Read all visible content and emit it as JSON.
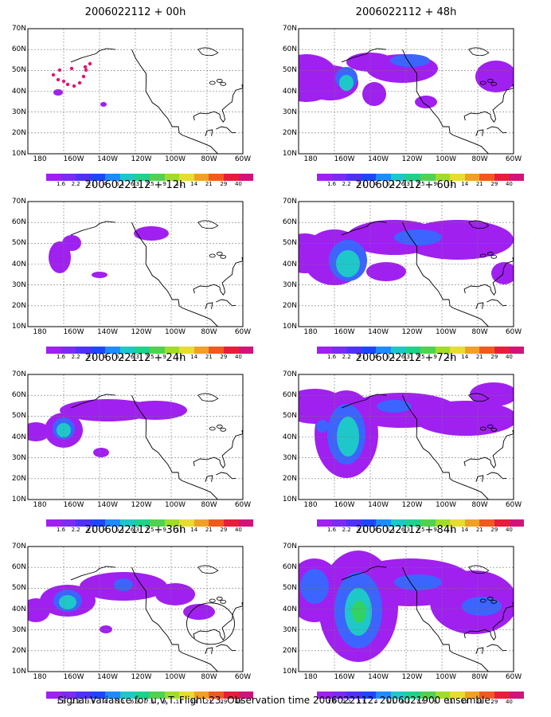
{
  "footer": "Signal Variance for u,v,T. Flight 23. Observation time 2006022112. 2006021900 ensemble.",
  "lat_labels": [
    "70N",
    "60N",
    "50N",
    "40N",
    "30N",
    "20N",
    "10N"
  ],
  "lon_labels": [
    "180",
    "160W",
    "140W",
    "120W",
    "100W",
    "80W",
    "60W"
  ],
  "colorbar_labels": [
    "1.6",
    "2.2",
    "3.1",
    "4",
    "5.1",
    "6.3",
    "7.5",
    "9",
    "11",
    "14",
    "21",
    "29",
    "40"
  ],
  "colorbar_colors": [
    "#a020f0",
    "#7b2cf0",
    "#5032f5",
    "#1e46ff",
    "#1e8cff",
    "#1ec8c8",
    "#1ed28c",
    "#50d250",
    "#a0dc28",
    "#e6dc32",
    "#f0a028",
    "#f05a1e",
    "#e61e3c",
    "#d21478"
  ],
  "panels": [
    {
      "title": "2006022112 + 00h"
    },
    {
      "title": "2006022112 + 48h"
    },
    {
      "title": "2006022112 + 12h"
    },
    {
      "title": "2006022112 + 60h"
    },
    {
      "title": "2006022112 + 24h"
    },
    {
      "title": "2006022112 + 72h"
    },
    {
      "title": "2006022112 + 36h"
    },
    {
      "title": "2006022112 + 84h"
    }
  ]
}
